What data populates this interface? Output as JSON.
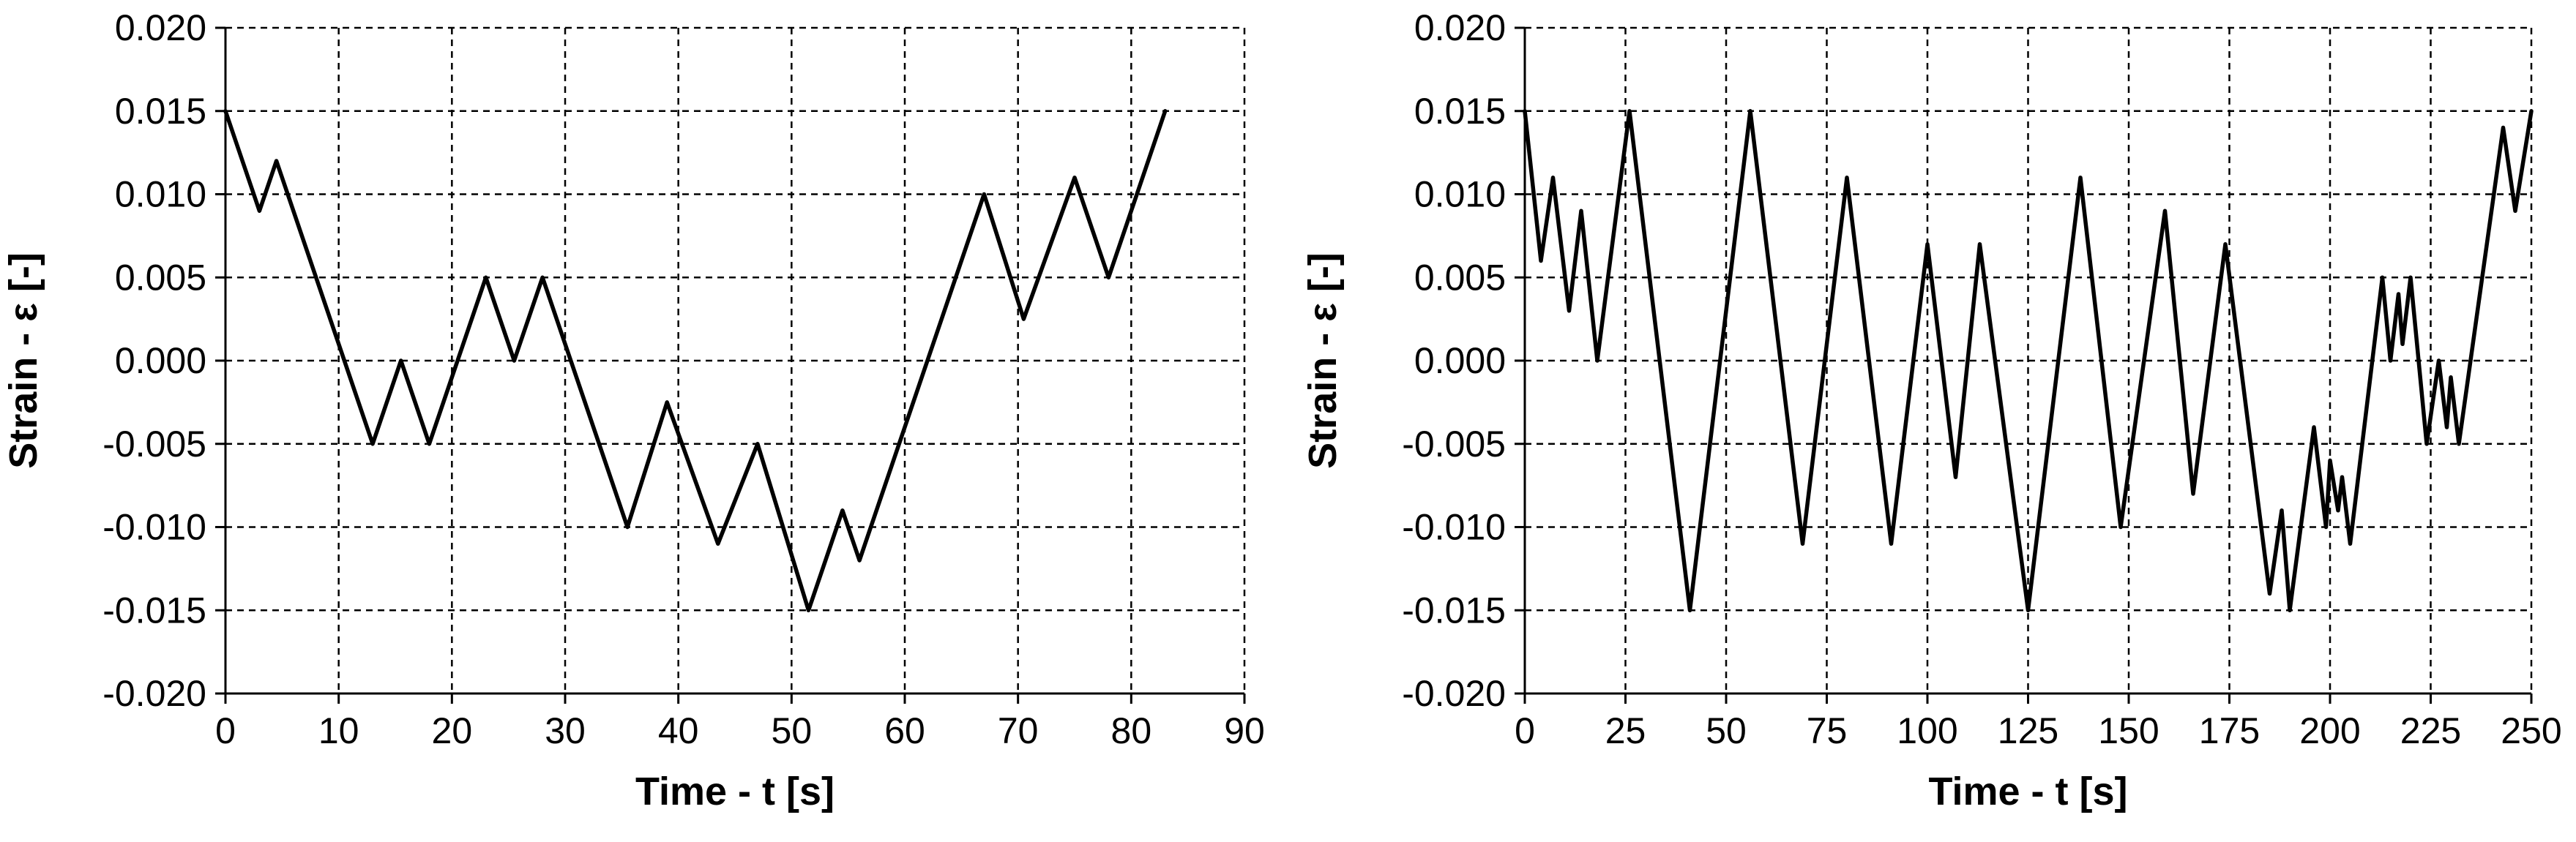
{
  "colors": {
    "line": "#000000",
    "grid": "#000000",
    "background": "#ffffff"
  },
  "chart_data": [
    {
      "type": "line",
      "xlabel": "Time - t [s]",
      "ylabel": "Strain - ε [-]",
      "xlim": [
        0,
        90
      ],
      "ylim": [
        -0.02,
        0.02
      ],
      "xticks": [
        0,
        10,
        20,
        30,
        40,
        50,
        60,
        70,
        80,
        90
      ],
      "yticks": [
        -0.02,
        -0.015,
        -0.01,
        -0.005,
        0,
        0.005,
        0.01,
        0.015,
        0.02
      ],
      "ytick_labels": [
        "-0.020",
        "-0.015",
        "-0.010",
        "-0.005",
        "0.000",
        "0.005",
        "0.010",
        "0.015",
        "0.020"
      ],
      "grid": true,
      "series": [
        {
          "x": [
            0,
            3,
            4.5,
            13,
            15.5,
            18,
            23,
            25.5,
            28,
            35.5,
            39,
            43.5,
            47,
            51.5,
            54.5,
            56,
            67,
            70.5,
            75,
            78,
            83
          ],
          "y": [
            0.015,
            0.009,
            0.012,
            -0.005,
            0,
            -0.005,
            0.005,
            0,
            0.005,
            -0.01,
            -0.0025,
            -0.011,
            -0.005,
            -0.015,
            -0.009,
            -0.012,
            0.01,
            0.0025,
            0.011,
            0.005,
            0.015
          ]
        }
      ]
    },
    {
      "type": "line",
      "xlabel": "Time - t [s]",
      "ylabel": "Strain - ε [-]",
      "xlim": [
        0,
        250
      ],
      "ylim": [
        -0.02,
        0.02
      ],
      "xticks": [
        0,
        25,
        50,
        75,
        100,
        125,
        150,
        175,
        200,
        225,
        250
      ],
      "yticks": [
        -0.02,
        -0.015,
        -0.01,
        -0.005,
        0,
        0.005,
        0.01,
        0.015,
        0.02
      ],
      "ytick_labels": [
        "-0.020",
        "-0.015",
        "-0.010",
        "-0.005",
        "0.000",
        "0.005",
        "0.010",
        "0.015",
        "0.020"
      ],
      "grid": true,
      "series": [
        {
          "x": [
            0,
            4,
            7,
            11,
            14,
            18,
            26,
            41,
            56,
            69,
            80,
            91,
            100,
            107,
            113,
            125,
            138,
            148,
            159,
            166,
            174,
            185,
            188,
            190,
            196,
            199,
            200,
            202,
            203,
            205,
            213,
            215,
            217,
            218,
            220,
            224,
            227,
            229,
            230,
            232,
            243,
            246,
            250
          ],
          "y": [
            0.015,
            0.006,
            0.011,
            0.003,
            0.009,
            0,
            0.015,
            -0.015,
            0.015,
            -0.011,
            0.011,
            -0.011,
            0.007,
            -0.007,
            0.007,
            -0.015,
            0.011,
            -0.01,
            0.009,
            -0.008,
            0.007,
            -0.014,
            -0.009,
            -0.015,
            -0.004,
            -0.01,
            -0.006,
            -0.009,
            -0.007,
            -0.011,
            0.005,
            0,
            0.004,
            0.001,
            0.005,
            -0.005,
            0,
            -0.004,
            -0.001,
            -0.005,
            0.014,
            0.009,
            0.015
          ]
        }
      ]
    }
  ]
}
